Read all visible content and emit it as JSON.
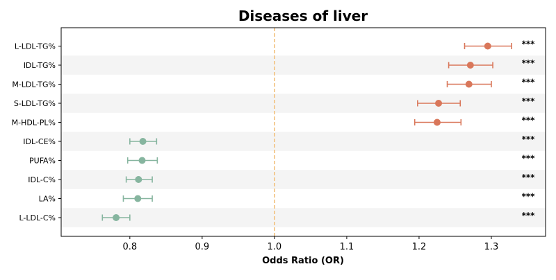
{
  "chart_data": {
    "type": "forest",
    "title": "Diseases of liver",
    "xlabel": "Odds Ratio (OR)",
    "ylabel": "",
    "xlim": [
      0.705,
      1.375
    ],
    "xticks": [
      0.8,
      0.9,
      1.0,
      1.1,
      1.2,
      1.3
    ],
    "xtick_labels": [
      "0.8",
      "0.9",
      "1.0",
      "1.1",
      "1.2",
      "1.3"
    ],
    "reference_line": {
      "x": 1.0,
      "color": "#f2c27f",
      "style": "dashed"
    },
    "row_stripes": true,
    "colors": {
      "positive": "#d9775a",
      "negative": "#86b59f",
      "stripe": "#f4f4f4",
      "axis": "#000000"
    },
    "categories": [
      "L-LDL-TG%",
      "IDL-TG%",
      "M-LDL-TG%",
      "S-LDL-TG%",
      "M-HDL-PL%",
      "IDL-CE%",
      "PUFA%",
      "IDL-C%",
      "LA%",
      "L-LDL-C%"
    ],
    "points": [
      {
        "label": "L-LDL-TG%",
        "or": 1.295,
        "lower": 1.263,
        "upper": 1.328,
        "significance": "***",
        "direction": "positive"
      },
      {
        "label": "IDL-TG%",
        "or": 1.271,
        "lower": 1.241,
        "upper": 1.302,
        "significance": "***",
        "direction": "positive"
      },
      {
        "label": "M-LDL-TG%",
        "or": 1.269,
        "lower": 1.239,
        "upper": 1.3,
        "significance": "***",
        "direction": "positive"
      },
      {
        "label": "S-LDL-TG%",
        "or": 1.227,
        "lower": 1.198,
        "upper": 1.257,
        "significance": "***",
        "direction": "positive"
      },
      {
        "label": "M-HDL-PL%",
        "or": 1.225,
        "lower": 1.194,
        "upper": 1.258,
        "significance": "***",
        "direction": "positive"
      },
      {
        "label": "IDL-CE%",
        "or": 0.818,
        "lower": 0.8,
        "upper": 0.837,
        "significance": "***",
        "direction": "negative"
      },
      {
        "label": "PUFA%",
        "or": 0.817,
        "lower": 0.797,
        "upper": 0.838,
        "significance": "***",
        "direction": "negative"
      },
      {
        "label": "IDL-C%",
        "or": 0.812,
        "lower": 0.795,
        "upper": 0.831,
        "significance": "***",
        "direction": "negative"
      },
      {
        "label": "LA%",
        "or": 0.811,
        "lower": 0.791,
        "upper": 0.831,
        "significance": "***",
        "direction": "negative"
      },
      {
        "label": "L-LDL-C%",
        "or": 0.781,
        "lower": 0.762,
        "upper": 0.8,
        "significance": "***",
        "direction": "negative"
      }
    ]
  }
}
